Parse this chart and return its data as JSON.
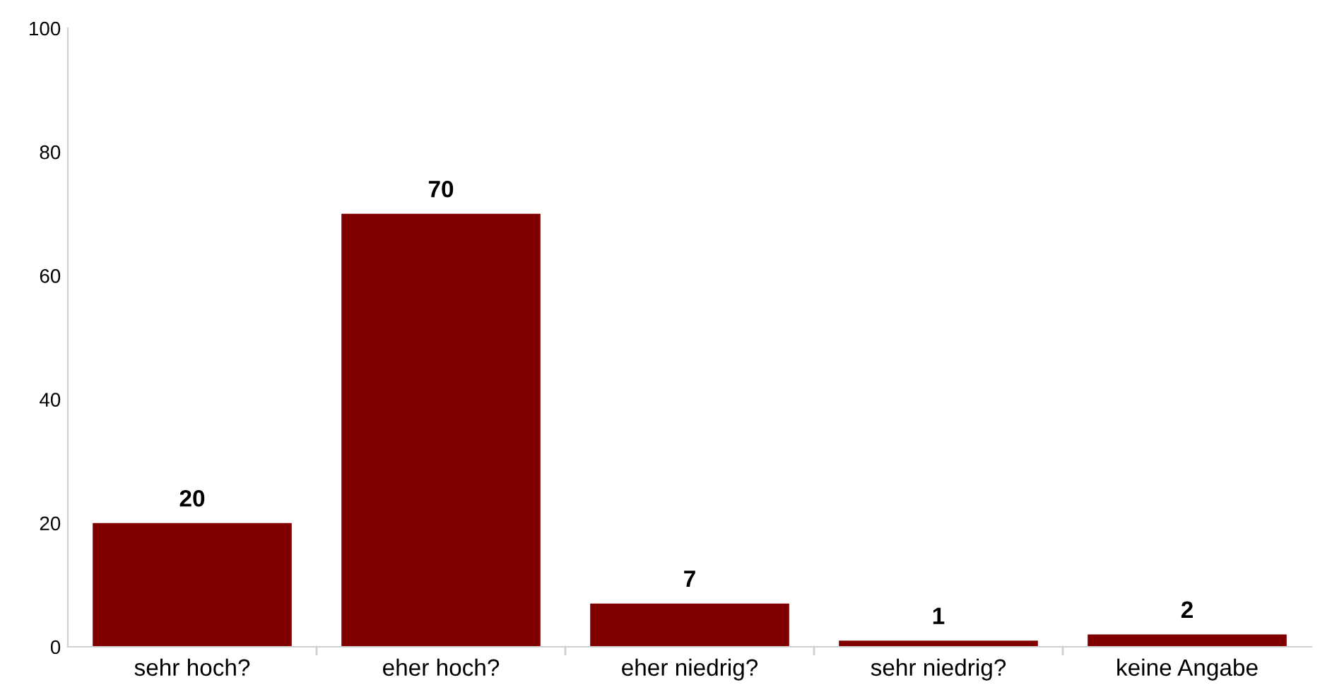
{
  "chart_data": {
    "type": "bar",
    "categories": [
      "sehr hoch?",
      "eher hoch?",
      "eher niedrig?",
      "sehr niedrig?",
      "keine Angabe"
    ],
    "values": [
      20,
      70,
      7,
      1,
      2
    ],
    "color": "#800000",
    "ylim": [
      0,
      100
    ],
    "yticks": [
      0,
      20,
      40,
      60,
      80,
      100
    ],
    "data_labels": true,
    "grid": false,
    "legend": false
  }
}
